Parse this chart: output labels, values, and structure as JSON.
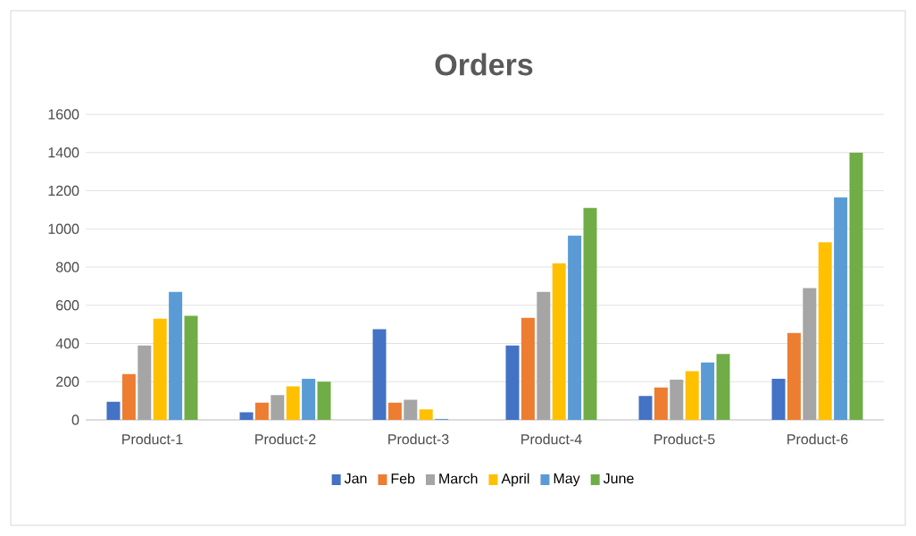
{
  "chart_data": {
    "type": "bar",
    "title": "Orders",
    "categories": [
      "Product-1",
      "Product-2",
      "Product-3",
      "Product-4",
      "Product-5",
      "Product-6"
    ],
    "series": [
      {
        "name": "Jan",
        "color": "#4472c4",
        "values": [
          95,
          40,
          475,
          390,
          125,
          215
        ]
      },
      {
        "name": "Feb",
        "color": "#ed7d31",
        "values": [
          240,
          90,
          90,
          535,
          170,
          455
        ]
      },
      {
        "name": "March",
        "color": "#a5a5a5",
        "values": [
          390,
          130,
          105,
          670,
          210,
          690
        ]
      },
      {
        "name": "April",
        "color": "#ffc000",
        "values": [
          530,
          175,
          55,
          820,
          255,
          930
        ]
      },
      {
        "name": "May",
        "color": "#5b9bd5",
        "values": [
          670,
          215,
          5,
          965,
          300,
          1165
        ]
      },
      {
        "name": "June",
        "color": "#70ad47",
        "values": [
          545,
          200,
          0,
          1110,
          345,
          1400
        ]
      }
    ],
    "ylim": [
      0,
      1600
    ],
    "yticks": [
      0,
      200,
      400,
      600,
      800,
      1000,
      1200,
      1400,
      1600
    ],
    "grid": "y",
    "legend": "bottom"
  }
}
